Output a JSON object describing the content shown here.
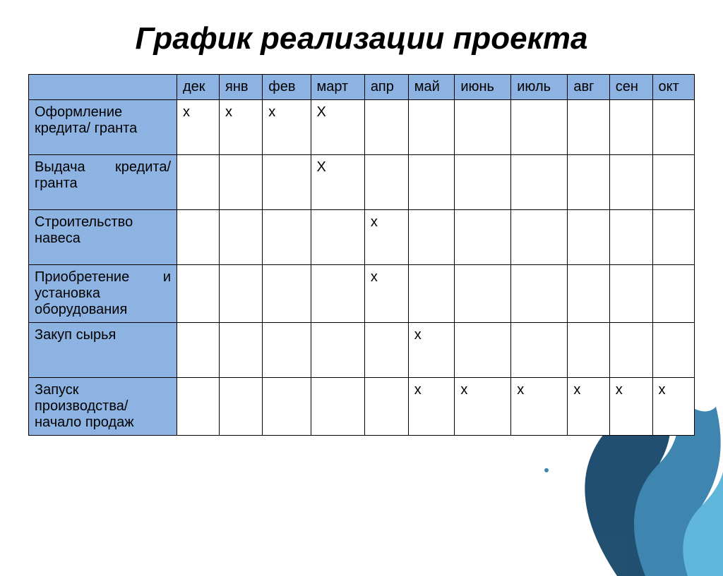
{
  "title": "График реализации проекта",
  "table": {
    "header_bg": "#8db3e2",
    "rowhead_bg": "#8db3e2",
    "border_color": "#000000",
    "cell_bg": "#ffffff",
    "font_size": 20,
    "title_font_size": 44,
    "title_color": "#000000",
    "columns": [
      "",
      "дек",
      "янв",
      "фев",
      "март",
      "апр",
      "май",
      "июнь",
      "июль",
      "авг",
      "сен",
      "окт"
    ],
    "rows": [
      {
        "label": "Оформление кредита/ гранта",
        "justify": false,
        "cells": [
          "х",
          "х",
          "х",
          "Х",
          "",
          "",
          "",
          "",
          "",
          "",
          ""
        ]
      },
      {
        "label": "Выдача кредита/ гранта",
        "justify": true,
        "cells": [
          "",
          "",
          "",
          "Х",
          "",
          "",
          "",
          "",
          "",
          "",
          ""
        ]
      },
      {
        "label": "Строительство навеса",
        "justify": false,
        "cells": [
          "",
          "",
          "",
          "",
          "х",
          "",
          "",
          "",
          "",
          "",
          ""
        ]
      },
      {
        "label": "Приобретение и установка оборудования",
        "justify": true,
        "cells": [
          "",
          "",
          "",
          "",
          "х",
          "",
          "",
          "",
          "",
          "",
          ""
        ]
      },
      {
        "label": "Закуп сырья",
        "justify": false,
        "cells": [
          "",
          "",
          "",
          "",
          "",
          "х",
          "",
          "",
          "",
          "",
          ""
        ]
      },
      {
        "label": "Запуск производства/ начало продаж",
        "justify": false,
        "cells": [
          "",
          "",
          "",
          "",
          "",
          "х",
          "х",
          "х",
          "х",
          "х",
          "х"
        ]
      }
    ]
  },
  "splash_colors": [
    "#0a3d62",
    "#2a7aa8",
    "#4fb0d8",
    "#a4d8ed"
  ]
}
